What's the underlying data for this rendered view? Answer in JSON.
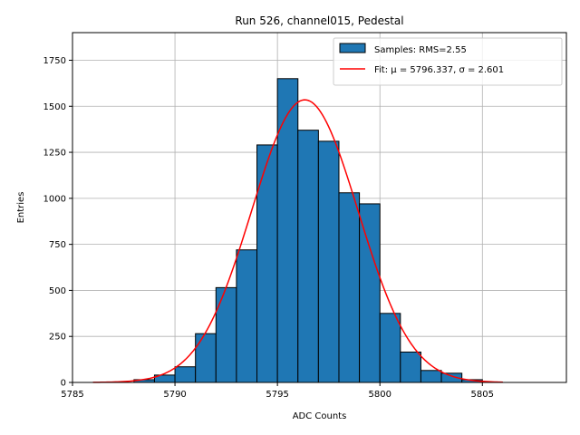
{
  "chart_data": {
    "type": "bar",
    "title": "Run 526, channel015, Pedestal",
    "xlabel": "ADC Counts",
    "ylabel": "Entries",
    "xlim": [
      5785,
      5809.1
    ],
    "ylim": [
      0,
      1900
    ],
    "xticks": [
      5785,
      5790,
      5795,
      5800,
      5805
    ],
    "yticks": [
      0,
      250,
      500,
      750,
      1000,
      1250,
      1500,
      1750
    ],
    "grid": true,
    "legend_position": "top-right",
    "bin_edges": [
      5788,
      5789,
      5790,
      5791,
      5792,
      5793,
      5794,
      5795,
      5796,
      5797,
      5798,
      5799,
      5800,
      5801,
      5802,
      5803,
      5804,
      5805
    ],
    "series": [
      {
        "name": "Samples: RMS=2.55",
        "kind": "histogram",
        "color": "#1f77b4",
        "edge_color": "#000000",
        "values": [
          15,
          40,
          85,
          265,
          515,
          720,
          1290,
          1650,
          1370,
          1310,
          1030,
          970,
          375,
          165,
          65,
          50,
          15
        ]
      },
      {
        "name": "Fit: μ = 5796.337, σ = 2.601",
        "kind": "line",
        "color": "#ff0000",
        "mu": 5796.337,
        "sigma": 2.601,
        "amplitude": 1535,
        "x_range": [
          5786,
          5806
        ]
      }
    ]
  }
}
